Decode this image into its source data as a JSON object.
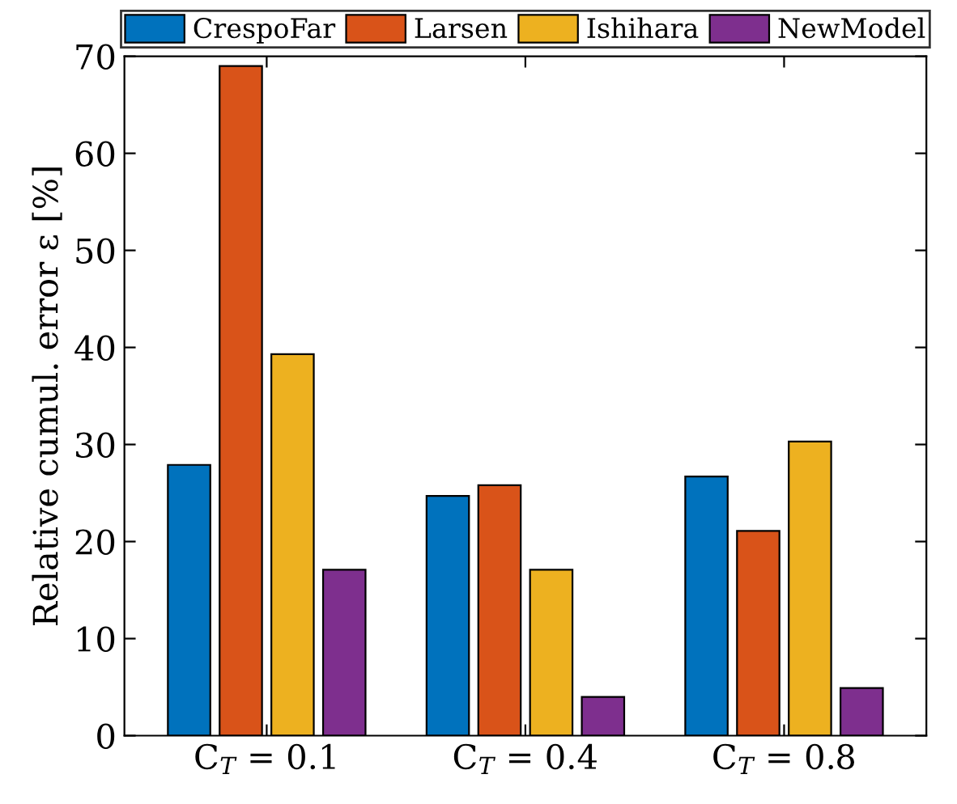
{
  "chart_data": {
    "type": "bar",
    "ylabel": "Relative cumul. error ε [%]",
    "categories": [
      "C$_{T}$ = 0.1",
      "C$_{T}$ = 0.4",
      "C$_{T}$ = 0.8"
    ],
    "series": [
      {
        "name": "CrespoFar",
        "color": "#0072bd",
        "values": [
          27.9,
          24.7,
          26.7
        ]
      },
      {
        "name": "Larsen",
        "color": "#d95319",
        "values": [
          69.0,
          25.8,
          21.1
        ]
      },
      {
        "name": "Ishihara",
        "color": "#edb120",
        "values": [
          39.3,
          17.1,
          30.3
        ]
      },
      {
        "name": "NewModel",
        "color": "#7e2f8e",
        "values": [
          17.1,
          4.0,
          4.9
        ]
      }
    ],
    "ylim": [
      0,
      70
    ],
    "yticks": [
      0,
      10,
      20,
      30,
      40,
      50,
      60,
      70
    ],
    "grid": false,
    "legend": "top"
  }
}
